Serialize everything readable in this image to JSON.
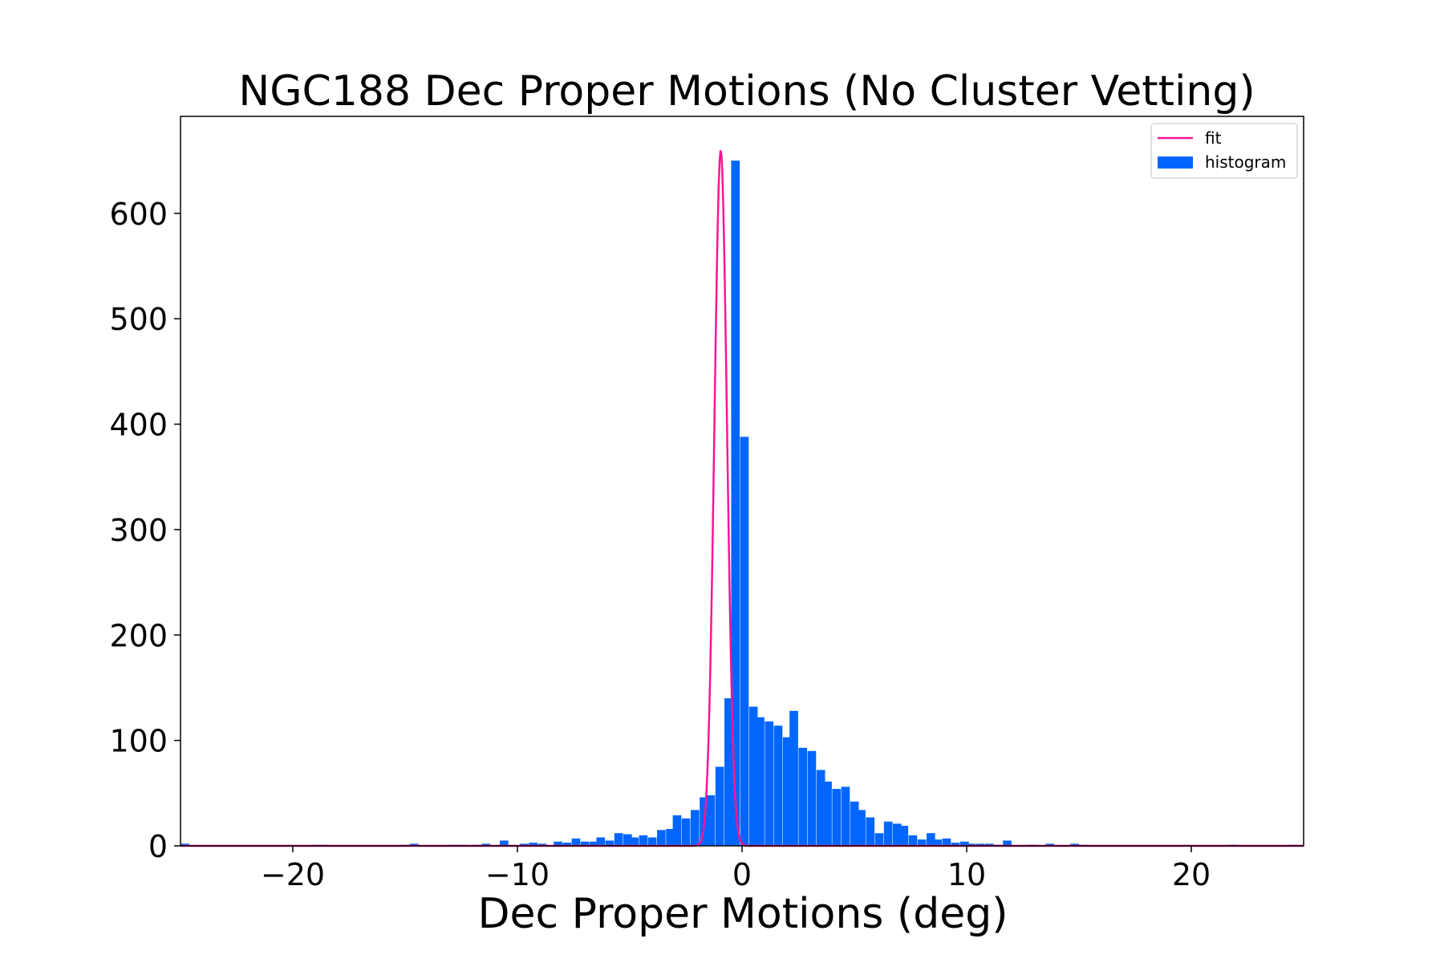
{
  "chart_data": {
    "type": "bar",
    "title": "NGC188 Dec Proper Motions (No Cluster Vetting)",
    "xlabel": "Dec Proper Motions (deg)",
    "ylabel": "",
    "xlim": [
      -25,
      25
    ],
    "ylim": [
      0,
      692
    ],
    "x_ticks": [
      -20,
      -10,
      0,
      10,
      20
    ],
    "x_tick_labels": [
      "−20",
      "−10",
      "0",
      "10",
      "20"
    ],
    "y_ticks": [
      0,
      100,
      200,
      300,
      400,
      500,
      600
    ],
    "y_tick_labels": [
      "0",
      "100",
      "200",
      "300",
      "400",
      "500",
      "600"
    ],
    "grid": false,
    "legend_position": "top-right",
    "bin_width": 0.37,
    "series": [
      {
        "name": "histogram",
        "kind": "histogram",
        "color": "#0066ff",
        "bins": [
          {
            "x": -24.8,
            "y": 2
          },
          {
            "x": -19.0,
            "y": 1
          },
          {
            "x": -18.6,
            "y": 1
          },
          {
            "x": -15.0,
            "y": 1
          },
          {
            "x": -14.6,
            "y": 2
          },
          {
            "x": -12.9,
            "y": 1
          },
          {
            "x": -12.5,
            "y": 1
          },
          {
            "x": -11.8,
            "y": 1
          },
          {
            "x": -11.4,
            "y": 2
          },
          {
            "x": -10.6,
            "y": 5
          },
          {
            "x": -9.7,
            "y": 2
          },
          {
            "x": -9.3,
            "y": 3
          },
          {
            "x": -8.9,
            "y": 2
          },
          {
            "x": -8.2,
            "y": 4
          },
          {
            "x": -7.8,
            "y": 3
          },
          {
            "x": -7.4,
            "y": 7
          },
          {
            "x": -7.0,
            "y": 4
          },
          {
            "x": -6.6,
            "y": 4
          },
          {
            "x": -6.3,
            "y": 8
          },
          {
            "x": -5.9,
            "y": 5
          },
          {
            "x": -5.5,
            "y": 12
          },
          {
            "x": -5.1,
            "y": 11
          },
          {
            "x": -4.8,
            "y": 8
          },
          {
            "x": -4.4,
            "y": 10
          },
          {
            "x": -4.0,
            "y": 8
          },
          {
            "x": -3.6,
            "y": 15
          },
          {
            "x": -3.2,
            "y": 16
          },
          {
            "x": -2.9,
            "y": 29
          },
          {
            "x": -2.5,
            "y": 26
          },
          {
            "x": -2.1,
            "y": 34
          },
          {
            "x": -1.7,
            "y": 46
          },
          {
            "x": -1.4,
            "y": 48
          },
          {
            "x": -1.0,
            "y": 75
          },
          {
            "x": -0.6,
            "y": 140
          },
          {
            "x": -0.3,
            "y": 650
          },
          {
            "x": 0.1,
            "y": 388
          },
          {
            "x": 0.5,
            "y": 132
          },
          {
            "x": 0.8,
            "y": 122
          },
          {
            "x": 1.2,
            "y": 118
          },
          {
            "x": 1.6,
            "y": 114
          },
          {
            "x": 2.0,
            "y": 103
          },
          {
            "x": 2.3,
            "y": 128
          },
          {
            "x": 2.7,
            "y": 93
          },
          {
            "x": 3.1,
            "y": 90
          },
          {
            "x": 3.5,
            "y": 72
          },
          {
            "x": 3.8,
            "y": 61
          },
          {
            "x": 4.2,
            "y": 54
          },
          {
            "x": 4.6,
            "y": 56
          },
          {
            "x": 5.0,
            "y": 42
          },
          {
            "x": 5.3,
            "y": 34
          },
          {
            "x": 5.7,
            "y": 27
          },
          {
            "x": 6.1,
            "y": 12
          },
          {
            "x": 6.5,
            "y": 23
          },
          {
            "x": 6.9,
            "y": 21
          },
          {
            "x": 7.2,
            "y": 19
          },
          {
            "x": 7.6,
            "y": 10
          },
          {
            "x": 8.0,
            "y": 6
          },
          {
            "x": 8.4,
            "y": 12
          },
          {
            "x": 8.7,
            "y": 6
          },
          {
            "x": 9.1,
            "y": 7
          },
          {
            "x": 9.5,
            "y": 3
          },
          {
            "x": 9.9,
            "y": 4
          },
          {
            "x": 10.2,
            "y": 2
          },
          {
            "x": 10.6,
            "y": 2
          },
          {
            "x": 11.0,
            "y": 2
          },
          {
            "x": 11.4,
            "y": 1
          },
          {
            "x": 11.8,
            "y": 5
          },
          {
            "x": 12.9,
            "y": 1
          },
          {
            "x": 13.7,
            "y": 2
          },
          {
            "x": 14.8,
            "y": 2
          },
          {
            "x": 15.2,
            "y": 1
          },
          {
            "x": 21.9,
            "y": 1
          },
          {
            "x": 24.5,
            "y": 1
          }
        ]
      },
      {
        "name": "fit",
        "kind": "gaussian",
        "color": "#ff1493",
        "amplitude": 660,
        "mean": -0.95,
        "sigma": 0.28
      }
    ]
  }
}
